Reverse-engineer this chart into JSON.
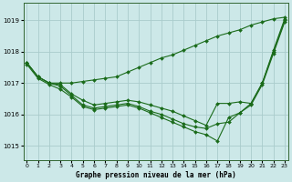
{
  "title": "Graphe pression niveau de la mer (hPa)",
  "bg_color": "#cce8e8",
  "grid_color": "#aacccc",
  "line_color": "#1a6b1a",
  "x_ticks": [
    0,
    1,
    2,
    3,
    4,
    5,
    6,
    7,
    8,
    9,
    10,
    11,
    12,
    13,
    14,
    15,
    16,
    17,
    18,
    19,
    20,
    21,
    22,
    23
  ],
  "y_ticks": [
    1015,
    1016,
    1017,
    1018,
    1019
  ],
  "ylim": [
    1014.55,
    1019.55
  ],
  "xlim": [
    -0.3,
    23.3
  ],
  "series": [
    [
      1017.65,
      1017.2,
      1017.0,
      1017.0,
      1017.0,
      1017.05,
      1017.1,
      1017.15,
      1017.2,
      1017.35,
      1017.5,
      1017.65,
      1017.8,
      1017.9,
      1018.05,
      1018.2,
      1018.35,
      1018.5,
      1018.6,
      1018.7,
      1018.85,
      1018.95,
      1019.05,
      1019.1
    ],
    [
      1017.65,
      1017.2,
      1017.0,
      1016.95,
      1016.65,
      1016.45,
      1016.3,
      1016.35,
      1016.4,
      1016.45,
      1016.4,
      1016.3,
      1016.2,
      1016.1,
      1015.95,
      1015.8,
      1015.65,
      1016.35,
      1016.35,
      1016.4,
      1016.35,
      1017.0,
      1018.05,
      1019.05
    ],
    [
      1017.65,
      1017.2,
      1017.0,
      1016.9,
      1016.6,
      1016.3,
      1016.2,
      1016.25,
      1016.3,
      1016.35,
      1016.25,
      1016.1,
      1016.0,
      1015.85,
      1015.7,
      1015.6,
      1015.55,
      1015.7,
      1015.75,
      1016.05,
      1016.35,
      1017.0,
      1018.0,
      1019.0
    ],
    [
      1017.6,
      1017.15,
      1016.95,
      1016.8,
      1016.55,
      1016.25,
      1016.15,
      1016.2,
      1016.25,
      1016.3,
      1016.2,
      1016.05,
      1015.9,
      1015.75,
      1015.6,
      1015.45,
      1015.35,
      1015.15,
      1015.9,
      1016.05,
      1016.3,
      1016.95,
      1017.95,
      1018.95
    ]
  ]
}
